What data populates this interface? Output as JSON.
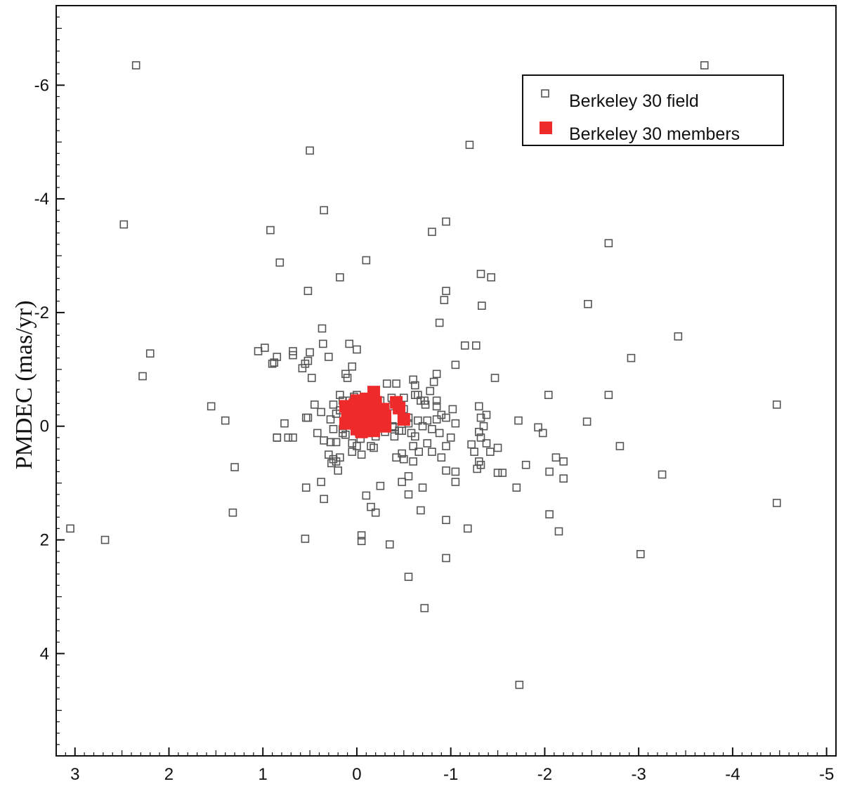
{
  "chart_data": {
    "type": "scatter",
    "title": "",
    "xlabel": "",
    "ylabel": "PMDEC (mas/yr)",
    "xlim": [
      3.2,
      -5.1
    ],
    "ylim": [
      -7.4,
      5.8
    ],
    "x_reversed": true,
    "y_reversed": true,
    "x_ticks": [
      3,
      2,
      1,
      0,
      -1,
      -2,
      -3,
      -4,
      -5
    ],
    "y_ticks": [
      -6,
      -4,
      -2,
      0,
      2,
      4
    ],
    "grid": false,
    "legend_position": "top-right",
    "series": [
      {
        "name": "Berkeley 30 field",
        "marker": "open-square",
        "color": "#555555",
        "points": [
          [
            2.35,
            -6.35
          ],
          [
            -3.7,
            -6.35
          ],
          [
            0.5,
            -4.85
          ],
          [
            -1.2,
            -4.95
          ],
          [
            0.35,
            -3.8
          ],
          [
            2.48,
            -3.55
          ],
          [
            -0.95,
            -3.6
          ],
          [
            -0.8,
            -3.42
          ],
          [
            0.92,
            -3.45
          ],
          [
            -2.68,
            -3.22
          ],
          [
            0.82,
            -2.88
          ],
          [
            -0.1,
            -2.92
          ],
          [
            0.18,
            -2.62
          ],
          [
            -1.32,
            -2.68
          ],
          [
            -1.43,
            -2.62
          ],
          [
            0.52,
            -2.38
          ],
          [
            -0.95,
            -2.38
          ],
          [
            -0.93,
            -2.22
          ],
          [
            -1.33,
            -2.12
          ],
          [
            -2.46,
            -2.15
          ],
          [
            0.37,
            -1.72
          ],
          [
            -0.88,
            -1.82
          ],
          [
            2.2,
            -1.28
          ],
          [
            2.28,
            -0.88
          ],
          [
            1.05,
            -1.32
          ],
          [
            0.88,
            -1.12
          ],
          [
            0.58,
            -1.02
          ],
          [
            0.48,
            -0.85
          ],
          [
            0.3,
            -1.22
          ],
          [
            0.08,
            -1.45
          ],
          [
            0.0,
            -1.35
          ],
          [
            0.36,
            -1.45
          ],
          [
            0.5,
            -1.3
          ],
          [
            0.55,
            -1.1
          ],
          [
            0.52,
            -1.15
          ],
          [
            0.68,
            -1.32
          ],
          [
            0.68,
            -1.25
          ],
          [
            0.85,
            -1.22
          ],
          [
            0.9,
            -1.1
          ],
          [
            0.98,
            -1.38
          ],
          [
            -1.15,
            -1.42
          ],
          [
            -1.27,
            -1.42
          ],
          [
            -1.05,
            -1.08
          ],
          [
            -0.85,
            -0.92
          ],
          [
            -0.82,
            -0.78
          ],
          [
            -0.6,
            -0.82
          ],
          [
            -0.62,
            -0.55
          ],
          [
            -0.78,
            -0.62
          ],
          [
            -0.85,
            -0.45
          ],
          [
            -1.47,
            -0.85
          ],
          [
            -3.42,
            -1.58
          ],
          [
            -2.92,
            -1.2
          ],
          [
            -2.04,
            -0.55
          ],
          [
            -2.68,
            -0.55
          ],
          [
            -4.47,
            -0.38
          ],
          [
            1.55,
            -0.35
          ],
          [
            1.4,
            -0.1
          ],
          [
            0.77,
            -0.05
          ],
          [
            0.85,
            0.2
          ],
          [
            0.68,
            0.2
          ],
          [
            0.54,
            -0.15
          ],
          [
            0.35,
            0.25
          ],
          [
            0.28,
            0.28
          ],
          [
            0.3,
            0.5
          ],
          [
            0.22,
            0.62
          ],
          [
            0.18,
            0.55
          ],
          [
            0.2,
            0.78
          ],
          [
            0.0,
            0.35
          ],
          [
            -0.05,
            0.5
          ],
          [
            0.05,
            0.3
          ],
          [
            0.25,
            -0.38
          ],
          [
            0.18,
            -0.55
          ],
          [
            0.22,
            -0.22
          ],
          [
            0.1,
            -0.15
          ],
          [
            0.1,
            -0.85
          ],
          [
            0.12,
            -0.92
          ],
          [
            0.05,
            -1.05
          ],
          [
            0.0,
            -0.55
          ],
          [
            -0.05,
            -0.35
          ],
          [
            0.38,
            -0.25
          ],
          [
            0.42,
            0.12
          ],
          [
            0.15,
            0.12
          ],
          [
            0.25,
            0.05
          ],
          [
            0.02,
            -0.05
          ],
          [
            -0.05,
            -0.15
          ],
          [
            0.15,
            0.05
          ],
          [
            -0.1,
            -0.12
          ],
          [
            -0.15,
            0.1
          ],
          [
            -0.2,
            0.18
          ],
          [
            -0.3,
            0.1
          ],
          [
            -0.38,
            0.0
          ],
          [
            -0.4,
            0.02
          ],
          [
            -0.45,
            0.08
          ],
          [
            -0.5,
            -0.3
          ],
          [
            -0.55,
            -0.15
          ],
          [
            -0.65,
            -0.1
          ],
          [
            -0.7,
            0.0
          ],
          [
            -0.75,
            -0.1
          ],
          [
            -0.8,
            0.05
          ],
          [
            -0.85,
            -0.12
          ],
          [
            -0.9,
            -0.2
          ],
          [
            -0.95,
            -0.15
          ],
          [
            -0.68,
            -0.45
          ],
          [
            -0.72,
            -0.45
          ],
          [
            -0.73,
            -0.38
          ],
          [
            -0.65,
            -0.55
          ],
          [
            -0.55,
            -0.05
          ],
          [
            -0.48,
            0.08
          ],
          [
            -0.58,
            0.12
          ],
          [
            -0.62,
            0.18
          ],
          [
            -0.75,
            0.3
          ],
          [
            -0.8,
            0.45
          ],
          [
            -0.9,
            0.55
          ],
          [
            -0.95,
            0.35
          ],
          [
            -1.0,
            0.2
          ],
          [
            -1.02,
            -0.3
          ],
          [
            -1.05,
            -0.05
          ],
          [
            -1.3,
            -0.35
          ],
          [
            -1.32,
            -0.15
          ],
          [
            -1.38,
            -0.2
          ],
          [
            -1.35,
            0.0
          ],
          [
            -1.3,
            0.1
          ],
          [
            -1.32,
            0.2
          ],
          [
            -1.38,
            0.3
          ],
          [
            -1.42,
            0.45
          ],
          [
            -1.25,
            0.45
          ],
          [
            -1.22,
            0.32
          ],
          [
            -1.3,
            0.62
          ],
          [
            -1.32,
            0.68
          ],
          [
            -1.28,
            0.75
          ],
          [
            -1.05,
            0.8
          ],
          [
            -1.05,
            0.98
          ],
          [
            -0.95,
            0.78
          ],
          [
            -1.5,
            0.38
          ],
          [
            -1.55,
            0.82
          ],
          [
            -1.72,
            -0.1
          ],
          [
            -1.98,
            0.12
          ],
          [
            -1.93,
            0.02
          ],
          [
            -1.8,
            0.68
          ],
          [
            -1.7,
            1.08
          ],
          [
            -2.12,
            0.55
          ],
          [
            -2.2,
            0.62
          ],
          [
            -2.2,
            0.92
          ],
          [
            -2.05,
            0.8
          ],
          [
            -2.45,
            -0.08
          ],
          [
            -2.8,
            0.35
          ],
          [
            -3.25,
            0.85
          ],
          [
            -4.47,
            1.35
          ],
          [
            1.3,
            0.72
          ],
          [
            1.32,
            1.52
          ],
          [
            0.85,
            0.2
          ],
          [
            0.73,
            0.2
          ],
          [
            0.52,
            -0.15
          ],
          [
            0.54,
            1.08
          ],
          [
            0.38,
            0.98
          ],
          [
            0.35,
            1.28
          ],
          [
            0.27,
            0.65
          ],
          [
            0.25,
            0.58
          ],
          [
            0.22,
            0.28
          ],
          [
            0.12,
            0.15
          ],
          [
            0.1,
            -0.1
          ],
          [
            0.03,
            -0.05
          ],
          [
            -0.02,
            0.1
          ],
          [
            -0.04,
            0.22
          ],
          [
            -0.1,
            0.02
          ],
          [
            -0.12,
            0.12
          ],
          [
            -0.18,
            0.38
          ],
          [
            -0.2,
            0.0
          ],
          [
            -0.25,
            -0.12
          ],
          [
            -0.4,
            0.18
          ],
          [
            -0.42,
            0.55
          ],
          [
            -0.48,
            0.48
          ],
          [
            -0.5,
            0.58
          ],
          [
            -0.6,
            0.62
          ],
          [
            -0.66,
            0.45
          ],
          [
            -0.6,
            0.35
          ],
          [
            -0.55,
            0.88
          ],
          [
            -0.48,
            0.98
          ],
          [
            -0.55,
            1.2
          ],
          [
            -0.7,
            1.08
          ],
          [
            -0.68,
            1.48
          ],
          [
            -0.1,
            1.22
          ],
          [
            -0.15,
            1.42
          ],
          [
            -0.25,
            1.05
          ],
          [
            -0.2,
            1.52
          ],
          [
            -0.95,
            1.65
          ],
          [
            -1.18,
            1.8
          ],
          [
            -1.5,
            0.82
          ],
          [
            -0.05,
            1.92
          ],
          [
            -0.05,
            2.02
          ],
          [
            -0.35,
            2.08
          ],
          [
            -0.95,
            2.32
          ],
          [
            -0.55,
            2.65
          ],
          [
            -0.72,
            3.2
          ],
          [
            3.05,
            1.8
          ],
          [
            2.68,
            2.0
          ],
          [
            0.55,
            1.98
          ],
          [
            -2.05,
            1.55
          ],
          [
            -2.15,
            1.85
          ],
          [
            -3.02,
            2.25
          ],
          [
            -1.73,
            4.55
          ],
          [
            0.0,
            -0.05
          ],
          [
            -0.2,
            -0.22
          ],
          [
            -0.25,
            -0.45
          ],
          [
            0.05,
            0.45
          ],
          [
            -0.15,
            0.35
          ],
          [
            0.03,
            -0.52
          ],
          [
            0.08,
            -0.45
          ],
          [
            0.45,
            -0.38
          ],
          [
            -0.32,
            -0.75
          ],
          [
            -0.37,
            -0.5
          ],
          [
            -0.38,
            -0.35
          ],
          [
            -0.5,
            -0.5
          ],
          [
            -0.42,
            -0.75
          ],
          [
            0.18,
            -0.28
          ],
          [
            0.28,
            -0.12
          ],
          [
            0.15,
            -0.45
          ],
          [
            -0.62,
            -0.72
          ],
          [
            -0.85,
            -0.35
          ],
          [
            -0.88,
            0.12
          ]
        ]
      },
      {
        "name": "Berkeley 30 members",
        "marker": "filled-square",
        "color": "#ee2a2a",
        "points": [
          [
            0.0,
            -0.45
          ],
          [
            0.0,
            -0.32
          ],
          [
            0.0,
            -0.18
          ],
          [
            0.0,
            -0.08
          ],
          [
            0.0,
            0.05
          ],
          [
            0.02,
            -0.38
          ],
          [
            0.05,
            -0.3
          ],
          [
            0.05,
            -0.12
          ],
          [
            0.1,
            -0.2
          ],
          [
            0.12,
            -0.35
          ],
          [
            0.12,
            -0.05
          ],
          [
            -0.1,
            -0.48
          ],
          [
            -0.1,
            -0.3
          ],
          [
            -0.12,
            -0.12
          ],
          [
            -0.15,
            0.05
          ],
          [
            -0.18,
            -0.6
          ],
          [
            -0.2,
            -0.42
          ],
          [
            -0.22,
            -0.25
          ],
          [
            -0.25,
            -0.1
          ],
          [
            -0.28,
            -0.3
          ],
          [
            -0.3,
            -0.18
          ],
          [
            -0.3,
            0.0
          ],
          [
            -0.18,
            0.08
          ],
          [
            -0.05,
            0.1
          ],
          [
            -0.42,
            -0.42
          ],
          [
            -0.45,
            -0.32
          ],
          [
            -0.5,
            -0.12
          ]
        ]
      }
    ]
  },
  "legend": {
    "items": [
      {
        "label": "Berkeley 30 field",
        "marker": "open-square"
      },
      {
        "label": "Berkeley 30 members",
        "marker": "filled-square"
      }
    ]
  }
}
